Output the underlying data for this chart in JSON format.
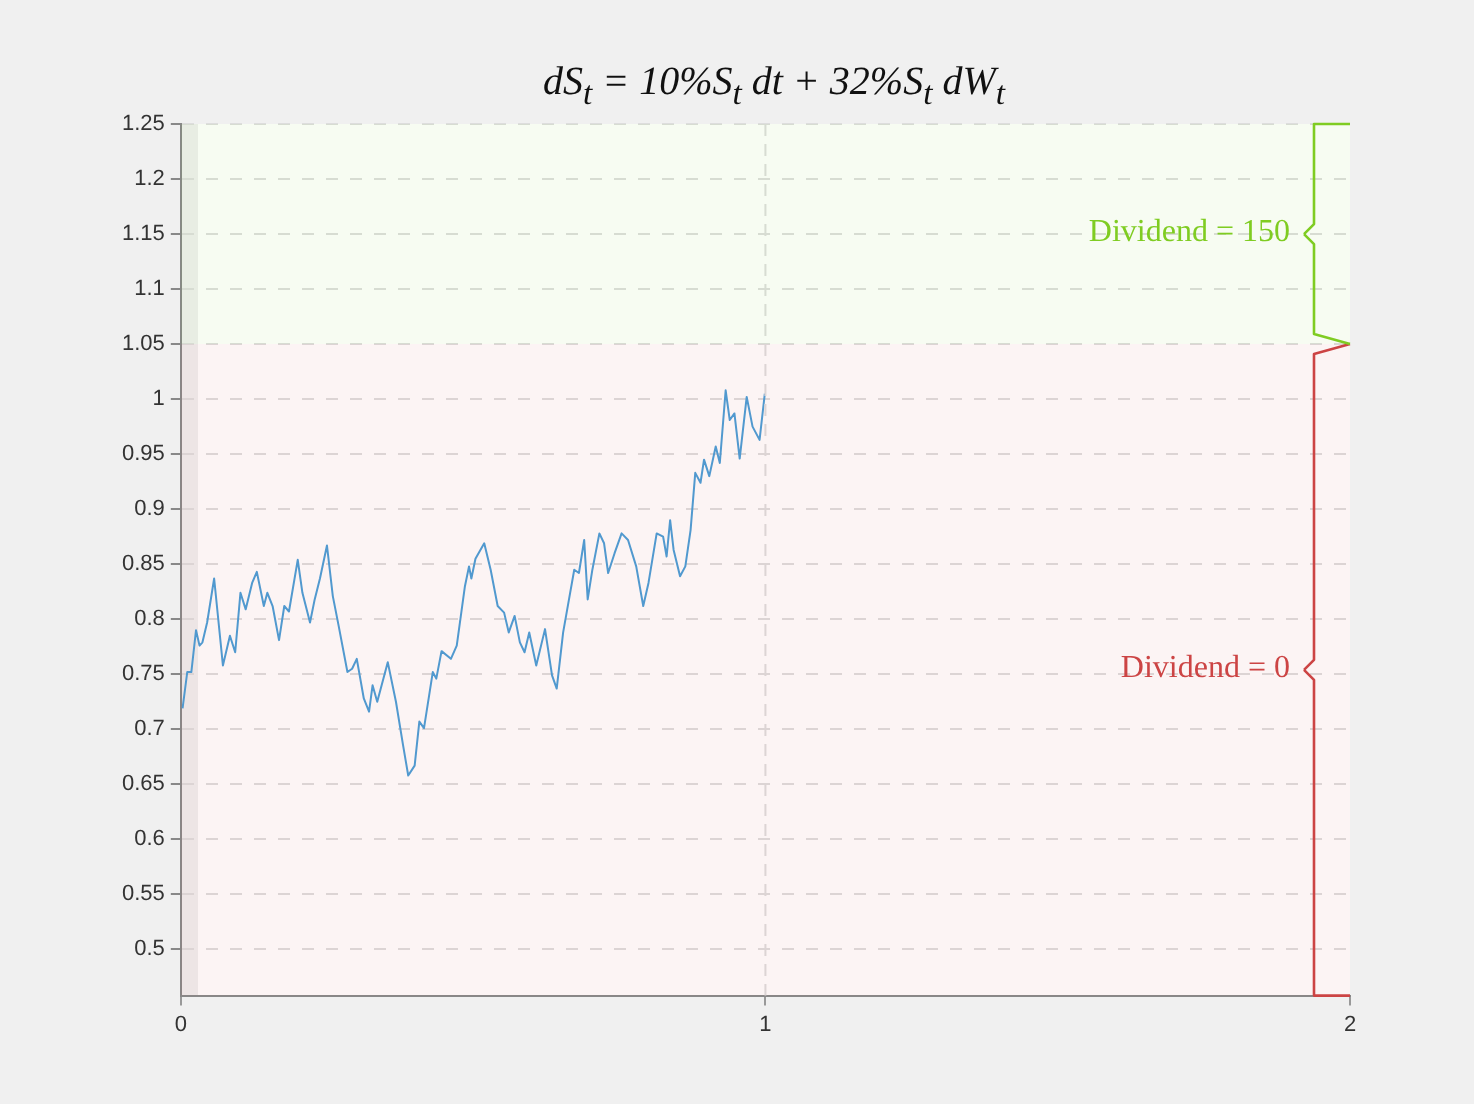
{
  "chart_data": {
    "type": "line",
    "title": "dS$_{t}$ = 10%S$_{t}$ dt + 32%S$_{t}$ dW$_{t}$",
    "series": [
      {
        "color": "#4a9fd8",
        "x": [
          0.003,
          0.011,
          0.018,
          0.026,
          0.032,
          0.037,
          0.045,
          0.057,
          0.072,
          0.084,
          0.093,
          0.102,
          0.111,
          0.122,
          0.13,
          0.142,
          0.148,
          0.157,
          0.168,
          0.177,
          0.185,
          0.2,
          0.208,
          0.221,
          0.229,
          0.238,
          0.25,
          0.26,
          0.27,
          0.285,
          0.293,
          0.301,
          0.313,
          0.322,
          0.328,
          0.336,
          0.354,
          0.368,
          0.38,
          0.389,
          0.4,
          0.408,
          0.416,
          0.431,
          0.437,
          0.446,
          0.462,
          0.472,
          0.486,
          0.493,
          0.497,
          0.504,
          0.519,
          0.53,
          0.542,
          0.553,
          0.561,
          0.571,
          0.58,
          0.588,
          0.596,
          0.608,
          0.623,
          0.635,
          0.643,
          0.654,
          0.664,
          0.673,
          0.681,
          0.69,
          0.696,
          0.704,
          0.716,
          0.724,
          0.731,
          0.742,
          0.754,
          0.765,
          0.779,
          0.791,
          0.8,
          0.814,
          0.825,
          0.831,
          0.837,
          0.843,
          0.854,
          0.863,
          0.872,
          0.88,
          0.889,
          0.895,
          0.904,
          0.915,
          0.922,
          0.932,
          0.939,
          0.947,
          0.956,
          0.968,
          0.978,
          0.99,
          0.999
        ],
        "values": [
          0.719,
          0.752,
          0.752,
          0.79,
          0.776,
          0.779,
          0.797,
          0.837,
          0.758,
          0.785,
          0.77,
          0.824,
          0.809,
          0.833,
          0.843,
          0.812,
          0.824,
          0.812,
          0.781,
          0.812,
          0.807,
          0.854,
          0.824,
          0.797,
          0.818,
          0.837,
          0.867,
          0.821,
          0.794,
          0.752,
          0.755,
          0.764,
          0.728,
          0.716,
          0.74,
          0.725,
          0.761,
          0.725,
          0.686,
          0.658,
          0.667,
          0.707,
          0.701,
          0.752,
          0.746,
          0.771,
          0.764,
          0.776,
          0.83,
          0.848,
          0.837,
          0.855,
          0.869,
          0.845,
          0.812,
          0.806,
          0.788,
          0.803,
          0.779,
          0.77,
          0.788,
          0.758,
          0.791,
          0.749,
          0.737,
          0.788,
          0.818,
          0.845,
          0.842,
          0.872,
          0.818,
          0.845,
          0.878,
          0.869,
          0.842,
          0.86,
          0.878,
          0.872,
          0.848,
          0.812,
          0.833,
          0.878,
          0.875,
          0.857,
          0.89,
          0.863,
          0.839,
          0.848,
          0.881,
          0.933,
          0.924,
          0.945,
          0.93,
          0.957,
          0.942,
          1.008,
          0.981,
          0.987,
          0.946,
          1.002,
          0.975,
          0.963,
          1.005
        ]
      }
    ],
    "xlim": [
      0,
      2
    ],
    "xticks": [
      0,
      1,
      2
    ],
    "ylim": [
      0.458,
      1.25
    ],
    "yticks": [
      0.5,
      0.55,
      0.6,
      0.65,
      0.7,
      0.75,
      0.8,
      0.85,
      0.9,
      0.95,
      1,
      1.05,
      1.1,
      1.15,
      1.2,
      1.25
    ],
    "grid": "y",
    "marker": "none",
    "line_style": "solid",
    "legend": false,
    "ref_lines": [
      {
        "axis": "x",
        "value": 1,
        "color": "#dddddd",
        "line_style": "dashed"
      }
    ],
    "bands": [
      {
        "axis": "y",
        "from": 0.458,
        "to": 1.05,
        "label": "Dividend = 0",
        "color": "#cc4444"
      },
      {
        "axis": "y",
        "from": 1.05,
        "to": 1.25,
        "label": "Dividend = 150",
        "color": "#7fcc22"
      }
    ]
  }
}
